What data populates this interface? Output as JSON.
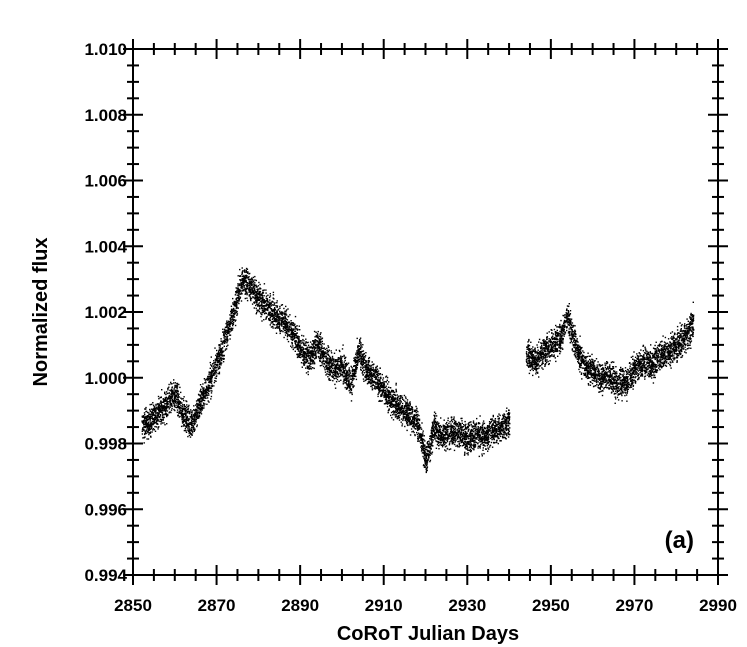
{
  "chart_data": {
    "type": "scatter",
    "xlabel": "CoRoT Julian Days",
    "ylabel": "Normalized flux",
    "panel_label": "(a)",
    "xlim": [
      2850,
      2990
    ],
    "ylim": [
      0.994,
      1.01
    ],
    "x_ticks": [
      "2850",
      "2870",
      "2890",
      "2910",
      "2930",
      "2950",
      "2970",
      "2990"
    ],
    "y_ticks": [
      "0.994",
      "0.996",
      "0.998",
      "1.000",
      "1.002",
      "1.004",
      "1.006",
      "1.008",
      "1.010"
    ],
    "x_minor_step": 5,
    "y_minor_step": 0.0005,
    "grid": false,
    "marker_color": "#000000",
    "series": [
      {
        "x": [
          2852,
          2854,
          2856,
          2858,
          2860,
          2862,
          2864,
          2866,
          2868,
          2870,
          2872,
          2874,
          2876,
          2878,
          2880,
          2882,
          2884,
          2886,
          2888,
          2890,
          2892,
          2894,
          2896,
          2898,
          2900,
          2902,
          2904,
          2906,
          2908,
          2910,
          2912,
          2914,
          2916,
          2918,
          2920,
          2922,
          2924,
          2926,
          2928,
          2930,
          2932,
          2934,
          2936,
          2938,
          2940,
          2944,
          2946,
          2948,
          2950,
          2952,
          2954,
          2956,
          2958,
          2960,
          2962,
          2964,
          2966,
          2968,
          2970,
          2972,
          2974,
          2976,
          2978,
          2980,
          2982,
          2984
        ],
        "y": [
          0.9985,
          0.9987,
          0.999,
          0.9992,
          0.9995,
          0.9989,
          0.9986,
          0.9993,
          0.9998,
          1.0005,
          1.0012,
          1.002,
          1.003,
          1.0028,
          1.0024,
          1.0022,
          1.0019,
          1.0017,
          1.0014,
          1.0009,
          1.0006,
          1.0011,
          1.0005,
          1.0003,
          1.0004,
          0.9998,
          1.0008,
          1.0002,
          1.0,
          0.9996,
          0.9993,
          0.9991,
          0.9989,
          0.9986,
          0.9975,
          0.9985,
          0.9982,
          0.9984,
          0.9983,
          0.9982,
          0.9983,
          0.9982,
          0.9984,
          0.9985,
          0.9987,
          1.0008,
          1.0005,
          1.0008,
          1.001,
          1.0012,
          1.0018,
          1.0009,
          1.0004,
          1.0002,
          1.0,
          1.0001,
          0.9998,
          0.9999,
          1.0003,
          1.0005,
          1.0004,
          1.0007,
          1.0008,
          1.001,
          1.0012,
          1.0017
        ],
        "scatter_amplitude": 0.0008
      }
    ]
  }
}
